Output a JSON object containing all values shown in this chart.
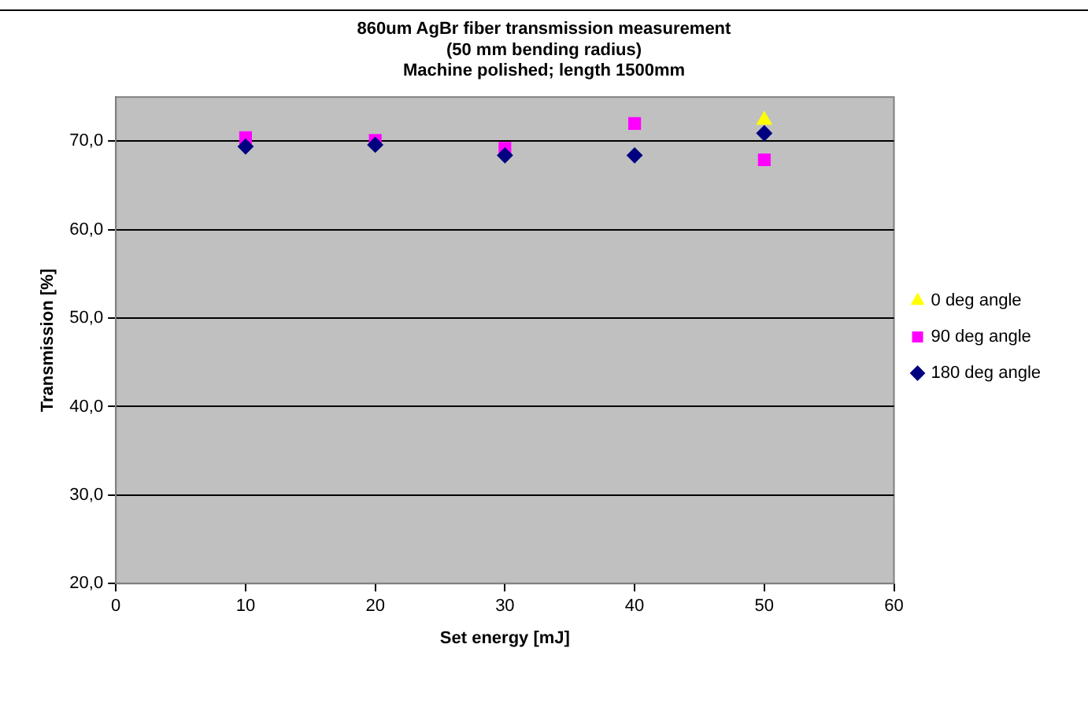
{
  "chart_data": {
    "type": "scatter",
    "title": "860um AgBr fiber transmission measurement\n(50 mm bending radius)\nMachine polished; length 1500mm",
    "xlabel": "Set energy [mJ]",
    "ylabel": "Transmission [%]",
    "x": [
      10,
      20,
      30,
      40,
      50
    ],
    "series": [
      {
        "name": "0 deg angle",
        "color": "#ffff00",
        "marker": "triangle",
        "values": [
          null,
          null,
          null,
          null,
          72.4
        ]
      },
      {
        "name": "90 deg angle",
        "color": "#ff00ff",
        "marker": "square",
        "values": [
          70.4,
          70.1,
          69.2,
          72.0,
          67.9
        ]
      },
      {
        "name": "180 deg angle",
        "color": "#000080",
        "marker": "diamond",
        "values": [
          69.4,
          69.6,
          68.4,
          68.4,
          70.9
        ]
      }
    ],
    "xlim": [
      0,
      60
    ],
    "xticks": [
      0,
      10,
      20,
      30,
      40,
      50,
      60
    ],
    "ylim": [
      20,
      75
    ],
    "yticks": [
      {
        "value": 20,
        "label": "20,0"
      },
      {
        "value": 30,
        "label": "30,0"
      },
      {
        "value": 40,
        "label": "40,0"
      },
      {
        "value": 50,
        "label": "50,0"
      },
      {
        "value": 60,
        "label": "60,0"
      },
      {
        "value": 70,
        "label": "70,0"
      }
    ],
    "grid": "y",
    "legend": "right"
  }
}
